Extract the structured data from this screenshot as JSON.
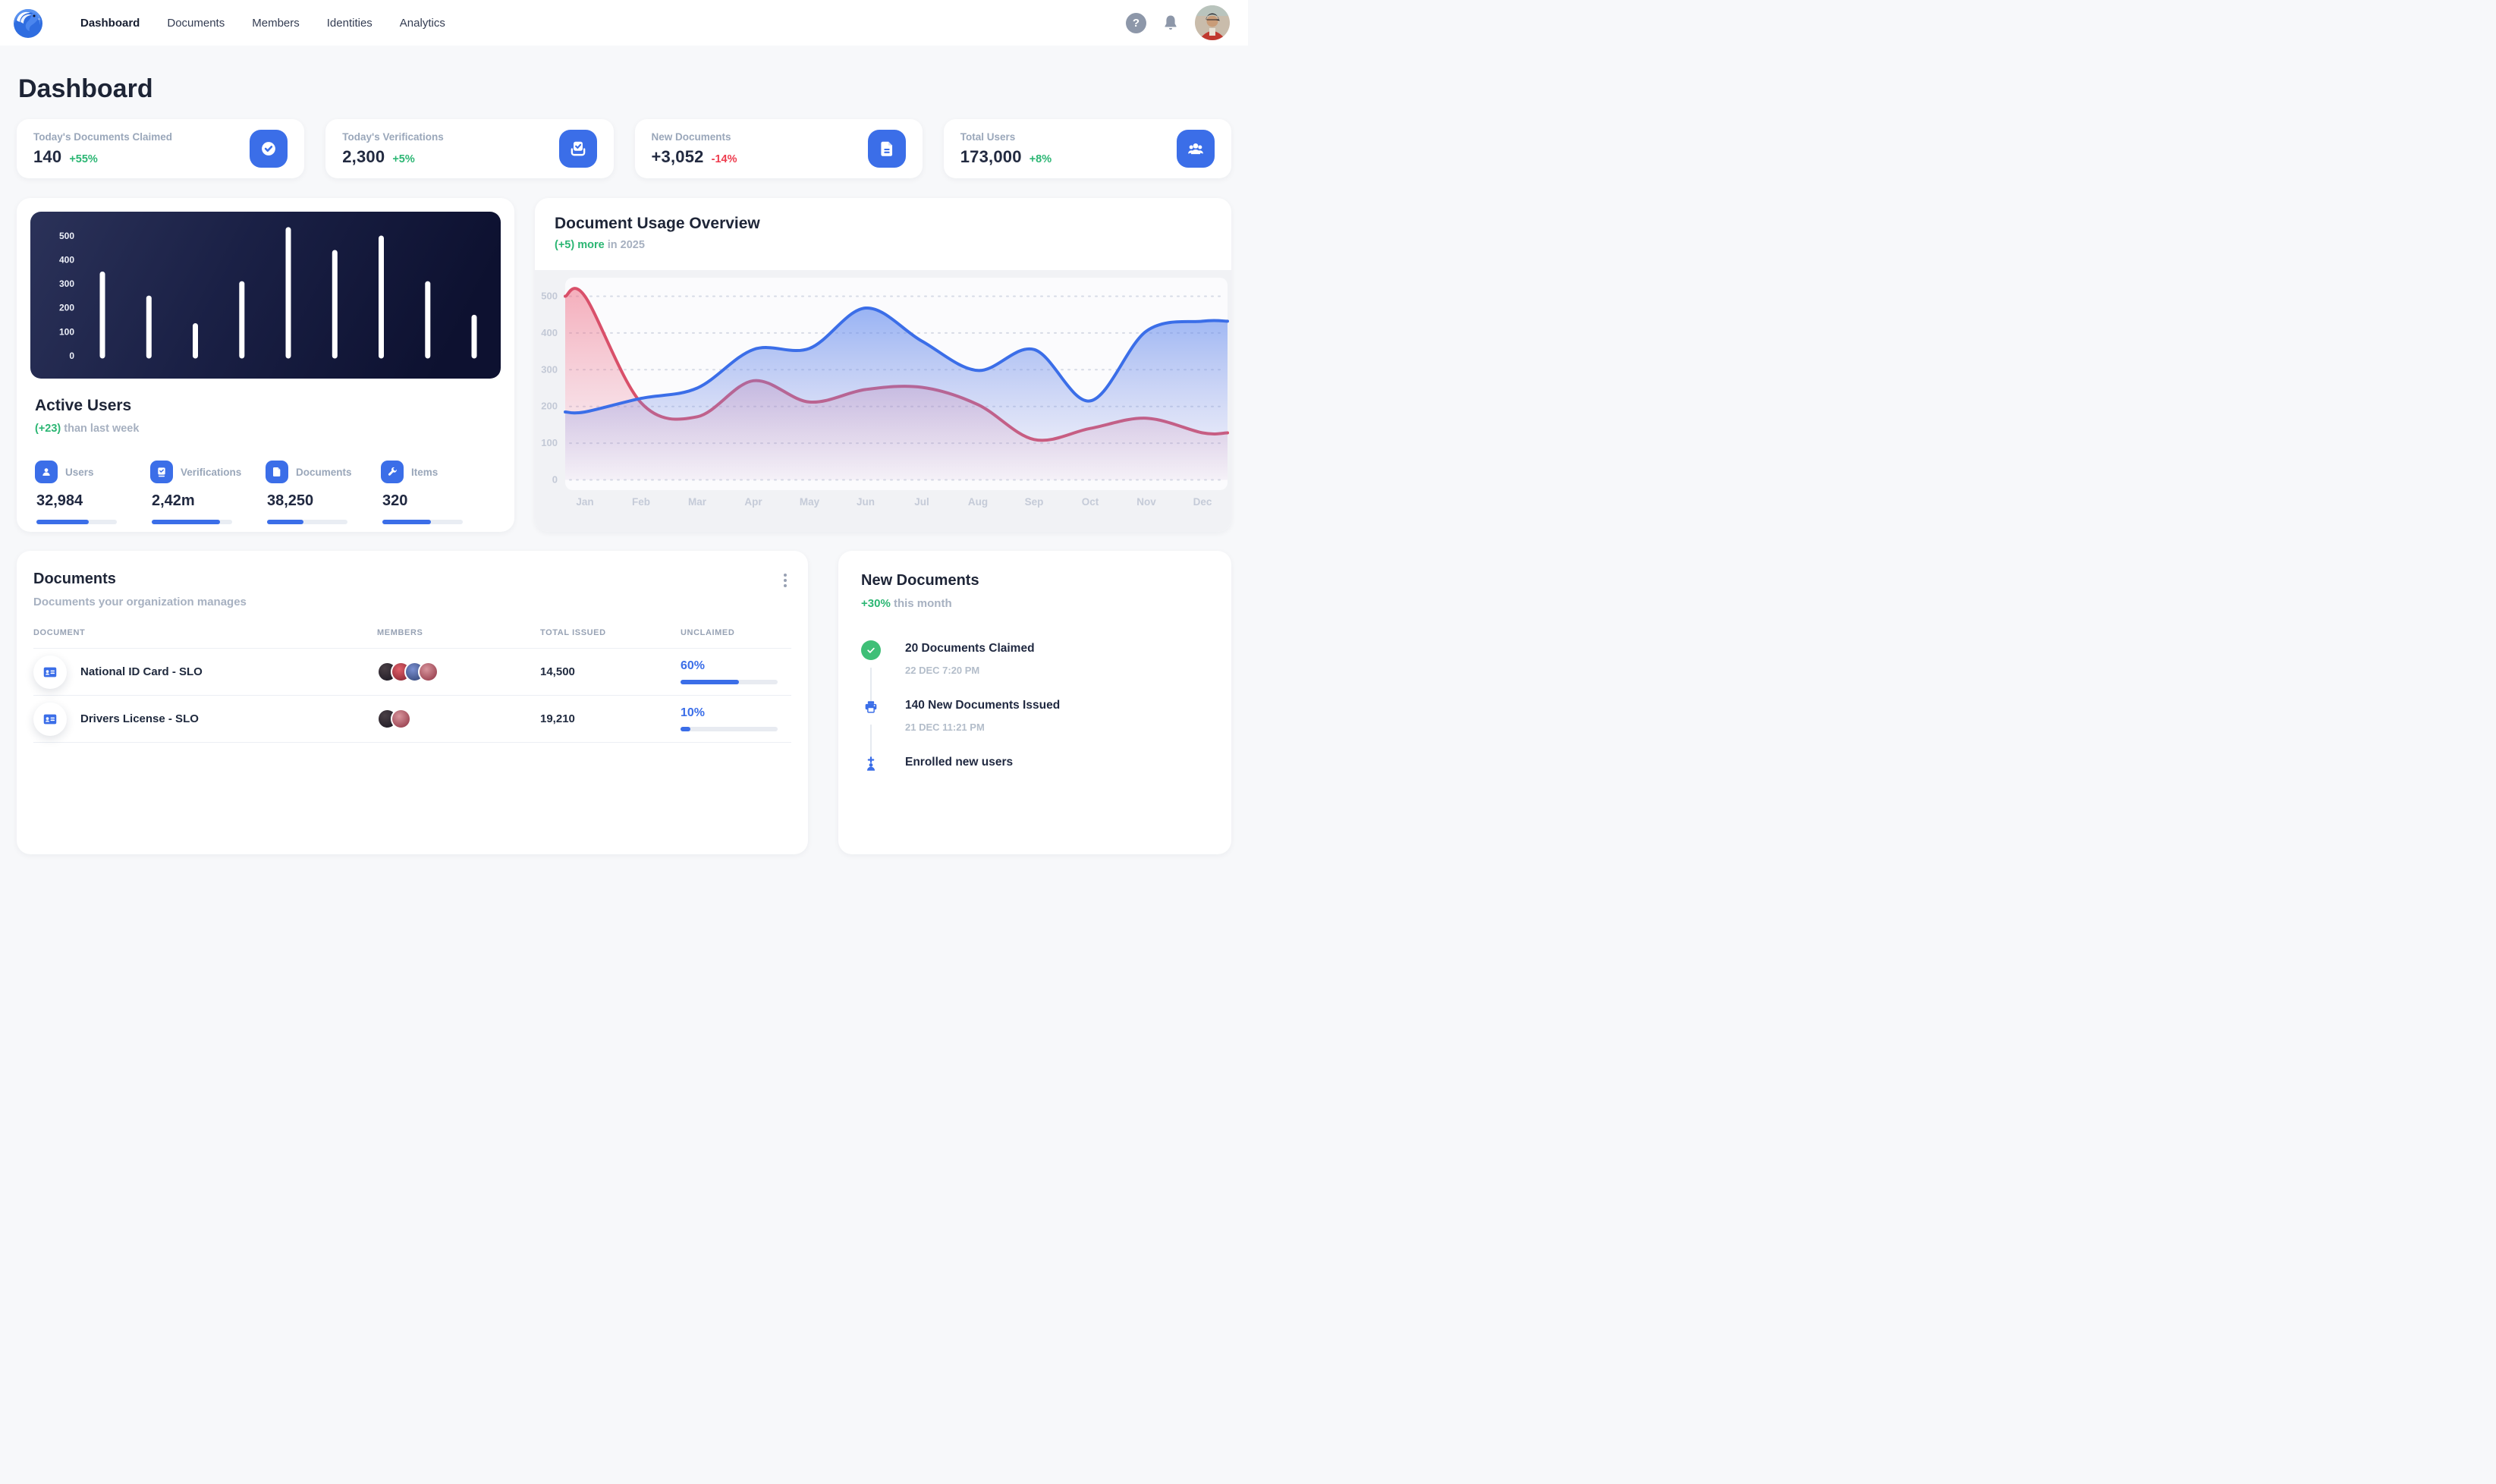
{
  "nav": {
    "items": [
      "Dashboard",
      "Documents",
      "Members",
      "Identities",
      "Analytics"
    ],
    "active": "Dashboard",
    "help_label": "?"
  },
  "page_title": "Dashboard",
  "colors": {
    "accent_blue": "#3b6ee8",
    "green": "#2bb673",
    "red": "#ee3b4d",
    "chart_red_line": "#d9506a",
    "dark_panel": "#0d1130",
    "page_bg": "#f7f8fa"
  },
  "stats": [
    {
      "label": "Today's Documents Claimed",
      "value": "140",
      "delta": "+55%",
      "trend": "up",
      "icon": "check-badge-icon"
    },
    {
      "label": "Today's Verifications",
      "value": "2,300",
      "delta": "+5%",
      "trend": "up",
      "icon": "verification-inbox-icon"
    },
    {
      "label": "New Documents",
      "value": "+3,052",
      "delta": "-14%",
      "trend": "down",
      "icon": "document-icon"
    },
    {
      "label": "Total Users",
      "value": "173,000",
      "delta": "+8%",
      "trend": "up",
      "icon": "users-group-icon"
    }
  ],
  "active_users": {
    "title": "Active Users",
    "delta": "(+23)",
    "delta_suffix": " than last week",
    "metrics": [
      {
        "label": "Users",
        "value": "32,984",
        "progress": 65,
        "icon": "user-icon"
      },
      {
        "label": "Verifications",
        "value": "2,42m",
        "progress": 85,
        "icon": "clipboard-check-icon"
      },
      {
        "label": "Documents",
        "value": "38,250",
        "progress": 45,
        "icon": "document-icon"
      },
      {
        "label": "Items",
        "value": "320",
        "progress": 60,
        "icon": "wrench-icon"
      }
    ]
  },
  "usage": {
    "title": "Document Usage Overview",
    "delta": "(+5) more",
    "delta_suffix": " in 2025"
  },
  "documents": {
    "title": "Documents",
    "subtitle": "Documents your organization manages",
    "columns": [
      "DOCUMENT",
      "MEMBERS",
      "TOTAL ISSUED",
      "UNCLAIMED"
    ],
    "rows": [
      {
        "name": "National ID Card - SLO",
        "members": 4,
        "total_issued": "14,500",
        "unclaimed_pct": "60%",
        "unclaimed": 60,
        "icon": "id-card-icon"
      },
      {
        "name": "Drivers License - SLO",
        "members": 2,
        "total_issued": "19,210",
        "unclaimed_pct": "10%",
        "unclaimed": 10,
        "icon": "id-card-icon"
      }
    ]
  },
  "new_documents": {
    "title": "New Documents",
    "delta": "+30%",
    "delta_suffix": " this month",
    "events": [
      {
        "title": "20 Documents Claimed",
        "time": "22 DEC 7:20 PM",
        "icon": "check-circle-icon"
      },
      {
        "title": "140 New Documents Issued",
        "time": "21 DEC 11:21 PM",
        "icon": "printer-icon"
      },
      {
        "title": "Enrolled new users",
        "time": "",
        "icon": "user-plus-icon"
      }
    ]
  },
  "chart_data": [
    {
      "type": "bar",
      "title": "Active Users activity",
      "categories": [
        "",
        "",
        "",
        "",
        "",
        "",
        "",
        "",
        ""
      ],
      "values": [
        340,
        240,
        125,
        300,
        525,
        430,
        490,
        300,
        160
      ],
      "yticks": [
        0,
        100,
        200,
        300,
        400,
        500
      ],
      "ylim": [
        0,
        550
      ],
      "bar_color": "#ffffff",
      "background": "dark-navy-gradient",
      "grid": false,
      "legend": "none"
    },
    {
      "type": "area",
      "title": "Document Usage Overview",
      "x": [
        "Jan",
        "Feb",
        "Mar",
        "Apr",
        "May",
        "Jun",
        "Jul",
        "Aug",
        "Sep",
        "Oct",
        "Nov",
        "Dec"
      ],
      "series": [
        {
          "name": "usage-blue",
          "color": "#3b6ee8",
          "values": [
            185,
            222,
            250,
            355,
            358,
            468,
            378,
            298,
            355,
            215,
            405,
            432
          ]
        },
        {
          "name": "usage-red",
          "color": "#d9506a",
          "values": [
            500,
            210,
            172,
            270,
            212,
            246,
            252,
            205,
            110,
            140,
            168,
            128
          ]
        }
      ],
      "yticks": [
        0,
        100,
        200,
        300,
        400,
        500
      ],
      "ylim": [
        0,
        500
      ],
      "grid": true,
      "legend": "none"
    }
  ]
}
